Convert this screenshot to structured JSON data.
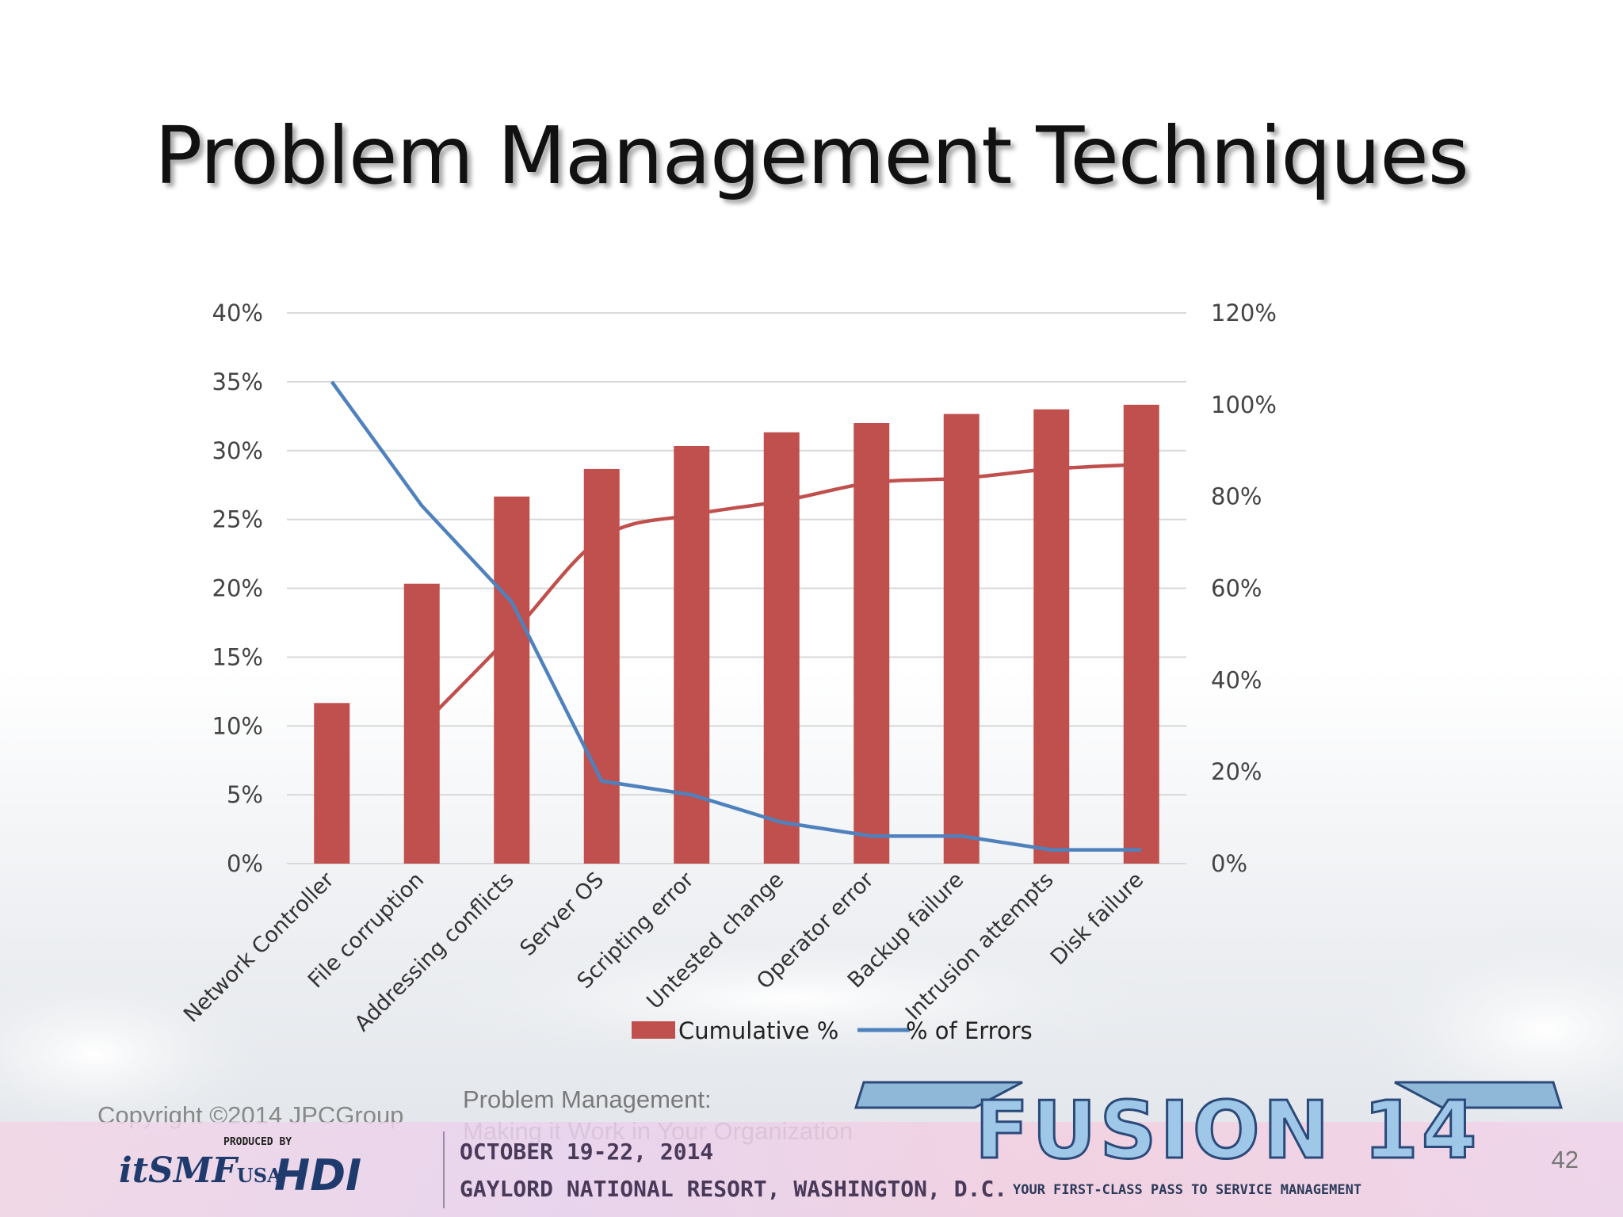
{
  "slide": {
    "title": "Problem Management Techniques",
    "copyright": "Copyright ©2014 JPCGroup",
    "session_title_line1": "Problem Management:",
    "session_title_line2": "Making it Work in Your Organization",
    "slide_number": "42"
  },
  "footer_banner": {
    "produced_by": "PRODUCED BY",
    "org1": "itSMF",
    "org1_suffix": "USA",
    "org2": "HDI",
    "dates": "OCTOBER 19-22, 2014",
    "venue": "GAYLORD NATIONAL RESORT, WASHINGTON, D.C.",
    "event_logo": "FUSION 14",
    "tagline": "YOUR FIRST-CLASS PASS TO SERVICE MANAGEMENT"
  },
  "chart_data": {
    "type": "bar",
    "categories": [
      "Network Controller",
      "File corruption",
      "Addressing conflicts",
      "Server OS",
      "Scripting error",
      "Untested change",
      "Operator error",
      "Backup failure",
      "Intrusion attempts",
      "Disk failure"
    ],
    "series": [
      {
        "name": "Cumulative %",
        "type": "bar",
        "axis": "right",
        "color": "#c0504d",
        "values": [
          35,
          61,
          80,
          86,
          91,
          94,
          96,
          98,
          99,
          100
        ]
      },
      {
        "name": "Cumulative % (trend)",
        "type": "line",
        "axis": "right",
        "color": "#c0504d",
        "values": [
          null,
          30,
          50,
          71,
          76,
          79,
          83,
          84,
          86,
          87
        ]
      },
      {
        "name": "% of Errors",
        "type": "line",
        "axis": "left",
        "color": "#4f81bd",
        "values": [
          35,
          26,
          19,
          6,
          5,
          3,
          2,
          2,
          1,
          1
        ]
      }
    ],
    "left_axis": {
      "ticks": [
        "0%",
        "5%",
        "10%",
        "15%",
        "20%",
        "25%",
        "30%",
        "35%",
        "40%"
      ],
      "ylim": [
        0,
        40
      ]
    },
    "right_axis": {
      "ticks": [
        "0%",
        "20%",
        "40%",
        "60%",
        "80%",
        "100%",
        "120%"
      ],
      "ylim": [
        0,
        120
      ]
    },
    "legend": {
      "placement": "bottom",
      "items": [
        "Cumulative %",
        "% of Errors"
      ]
    },
    "grid": true
  },
  "colors": {
    "bar": "#c0504d",
    "errors_line": "#4f81bd",
    "grid": "#d9d9d9"
  }
}
